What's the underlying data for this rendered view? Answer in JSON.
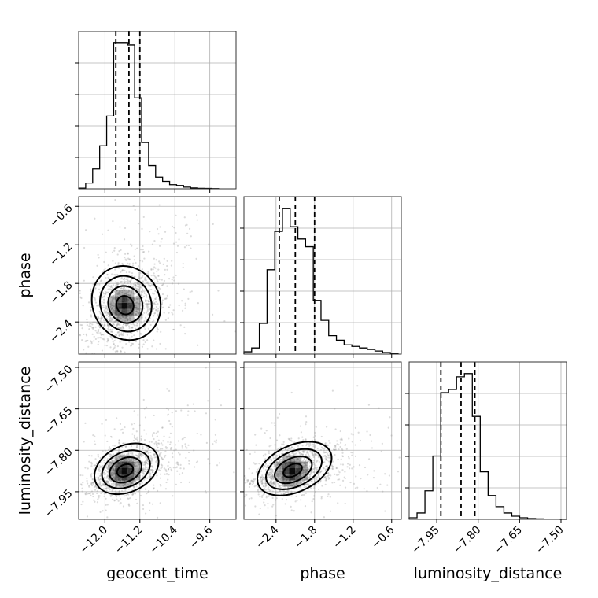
{
  "chart_data": {
    "type": "corner",
    "parameters": [
      "geocent_time",
      "phase",
      "luminosity_distance"
    ],
    "axis_labels": {
      "geocent_time": "geocent_time",
      "phase": "phase",
      "luminosity_distance": "luminosity_distance"
    },
    "ranges": {
      "geocent_time": [
        -12.6,
        -9.0
      ],
      "phase": [
        -2.9,
        -0.45
      ],
      "luminosity_distance": [
        -8.05,
        -7.48
      ]
    },
    "ticks": {
      "geocent_time": {
        "values": [
          -12.0,
          -11.2,
          -10.4,
          -9.6
        ],
        "labels": [
          "−12.0",
          "−11.2",
          "−10.4",
          "−9.6"
        ]
      },
      "phase": {
        "values": [
          -2.4,
          -1.8,
          -1.2,
          -0.6
        ],
        "labels": [
          "−2.4",
          "−1.8",
          "−1.2",
          "−0.6"
        ]
      },
      "luminosity_distance": {
        "values": [
          -7.95,
          -7.8,
          -7.65,
          -7.5
        ],
        "labels": [
          "−7.95",
          "−7.80",
          "−7.65",
          "−7.50"
        ]
      }
    },
    "histograms": {
      "geocent_time": {
        "edges": [
          -12.6,
          -12.44,
          -12.28,
          -12.12,
          -11.96,
          -11.8,
          -11.64,
          -11.48,
          -11.32,
          -11.16,
          -11.0,
          -10.84,
          -10.68,
          -10.52,
          -10.36,
          -10.2,
          -10.04,
          -9.88,
          -9.72,
          -9.56,
          -9.4
        ],
        "counts": [
          0.4,
          3.5,
          12,
          26,
          44,
          88,
          88,
          87,
          55,
          28,
          14,
          7,
          4.5,
          2.5,
          2,
          1,
          0.5,
          0.3,
          0.2,
          0.1
        ]
      },
      "phase": {
        "edges": [
          -2.9,
          -2.78,
          -2.66,
          -2.54,
          -2.42,
          -2.3,
          -2.18,
          -2.06,
          -1.94,
          -1.82,
          -1.7,
          -1.58,
          -1.46,
          -1.34,
          -1.22,
          -1.1,
          -0.98,
          -0.86,
          -0.74,
          -0.62,
          -0.5
        ],
        "counts": [
          1.5,
          4,
          20,
          55,
          80,
          95,
          83,
          75,
          70,
          35,
          22,
          12,
          9,
          6,
          5,
          4,
          3,
          2,
          1,
          0.5
        ]
      },
      "luminosity_distance": {
        "edges": [
          -8.05,
          -8.0214,
          -7.9928,
          -7.9642,
          -7.9356,
          -7.907,
          -7.8784,
          -7.8498,
          -7.8212,
          -7.7926,
          -7.764,
          -7.7354,
          -7.7068,
          -7.6782,
          -7.6496,
          -7.621,
          -7.5924,
          -7.5638,
          -7.5352,
          -7.5066,
          -7.478
        ],
        "counts": [
          1,
          4,
          18,
          40,
          80,
          82,
          90,
          92,
          65,
          30,
          15,
          8,
          4,
          2,
          1,
          0.5,
          0.3,
          0.2,
          0.1,
          0
        ]
      }
    },
    "quantiles": {
      "geocent_time": [
        -11.75,
        -11.45,
        -11.2
      ],
      "phase": [
        -2.35,
        -2.1,
        -1.8
      ],
      "luminosity_distance": [
        -7.935,
        -7.862,
        -7.812
      ]
    },
    "peak": {
      "geocent_time": -11.55,
      "phase": -2.15,
      "luminosity_distance": -7.875
    },
    "spread": {
      "geocent_time": 0.35,
      "phase": 0.28,
      "luminosity_distance": 0.04
    },
    "correlation": {
      "phase|geocent_time": 0.35,
      "luminosity_distance|geocent_time": 0.4,
      "luminosity_distance|phase": 0.35
    },
    "contour_levels_sigma": [
      0.5,
      1.0,
      1.5,
      2.0
    ],
    "grid": true,
    "colors": {
      "points": "#999999",
      "density": "#000000",
      "lines": "#000000"
    }
  }
}
